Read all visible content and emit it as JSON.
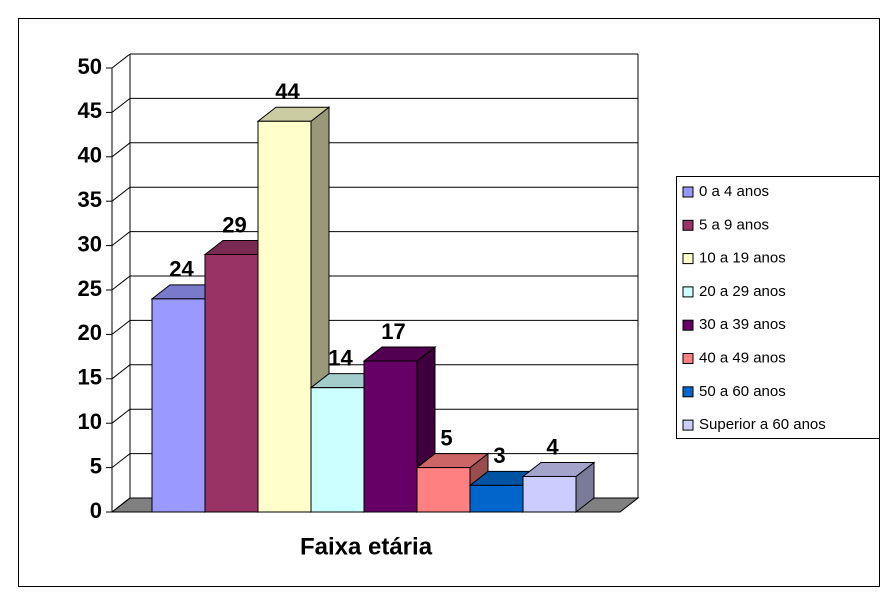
{
  "chart_data": {
    "type": "bar3d",
    "x_label": "Faixa etária",
    "categories": [
      null
    ],
    "series": [
      {
        "name": "0 a 4 anos",
        "color": "#9999ff",
        "values": [
          24
        ]
      },
      {
        "name": "5 a 9 anos",
        "color": "#993366",
        "values": [
          29
        ]
      },
      {
        "name": "10 a 19 anos",
        "color": "#ffffcc",
        "values": [
          44
        ]
      },
      {
        "name": "20 a 29 anos",
        "color": "#ccffff",
        "values": [
          14
        ]
      },
      {
        "name": "30 a 39 anos",
        "color": "#660066",
        "values": [
          17
        ]
      },
      {
        "name": "40 a 49 anos",
        "color": "#ff8080",
        "values": [
          5
        ]
      },
      {
        "name": "50 a 60 anos",
        "color": "#0066cc",
        "values": [
          3
        ]
      },
      {
        "name": "Superior a 60 anos",
        "color": "#ccccff",
        "values": [
          4
        ]
      }
    ],
    "ylim": [
      0,
      50
    ],
    "yticks": [
      0,
      5,
      10,
      15,
      20,
      25,
      30,
      35,
      40,
      45,
      50
    ],
    "grid": true,
    "legend": "right"
  }
}
